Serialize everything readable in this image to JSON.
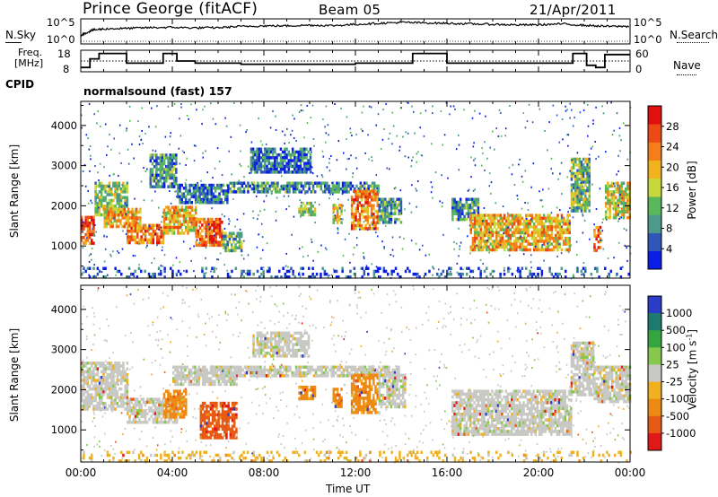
{
  "header": {
    "station": "Prince George (fitACF)",
    "beam": "Beam 05",
    "date": "21/Apr/2011"
  },
  "nsky_panel": {
    "left_label": "N.Sky",
    "right_label": "N.Search",
    "left_ticks": [
      "10^5",
      "10^0"
    ],
    "right_ticks": [
      "10^5",
      "10^0"
    ]
  },
  "freq_panel": {
    "left_label_1": "Freq.",
    "left_label_2": "[MHz]",
    "right_label": "Nave",
    "left_ticks": [
      "18",
      "8"
    ],
    "right_ticks": [
      "60",
      "0"
    ]
  },
  "cpid": {
    "label": "CPID",
    "program": "normalsound (fast) 157"
  },
  "colors": {
    "power_scale": [
      "#0a1ee6",
      "#2e57b8",
      "#4c9a8a",
      "#58b85a",
      "#c8d83c",
      "#f0b21e",
      "#f57e18",
      "#ec4a14",
      "#e01010"
    ],
    "velocity_scale": [
      "#2a3cc8",
      "#1e7a6e",
      "#34a640",
      "#86c84c",
      "#c8c8c4",
      "#f0b020",
      "#ee8a14",
      "#e85a14",
      "#e01818"
    ]
  },
  "chart_data": [
    {
      "type": "heatmap",
      "name": "power",
      "xlabel": "",
      "ylabel": "Slant Range [km]",
      "xlim": [
        0,
        24
      ],
      "ylim": [
        200,
        4600
      ],
      "y_ticks": [
        "1000",
        "2000",
        "3000",
        "4000"
      ],
      "y_tick_values": [
        1000,
        2000,
        3000,
        4000
      ],
      "colorbar": {
        "label": "Power [dB]",
        "ticks": [
          "4",
          "8",
          "12",
          "16",
          "20",
          "24",
          "28"
        ],
        "tick_values": [
          4,
          8,
          12,
          16,
          20,
          24,
          28
        ],
        "range": [
          0,
          32
        ]
      },
      "regions": [
        {
          "t0": 0.0,
          "t1": 0.6,
          "r0": 1050,
          "r1": 1750,
          "level": 27
        },
        {
          "t0": 0.6,
          "t1": 2.0,
          "r0": 1800,
          "r1": 2600,
          "level": 14
        },
        {
          "t0": 1.0,
          "t1": 2.6,
          "r0": 1500,
          "r1": 1950,
          "level": 20
        },
        {
          "t0": 2.0,
          "t1": 3.6,
          "r0": 1100,
          "r1": 1550,
          "level": 24
        },
        {
          "t0": 3.6,
          "t1": 5.0,
          "r0": 1300,
          "r1": 2000,
          "level": 20
        },
        {
          "t0": 3.0,
          "t1": 4.2,
          "r0": 2500,
          "r1": 3300,
          "level": 9
        },
        {
          "t0": 4.2,
          "t1": 6.4,
          "r0": 2050,
          "r1": 2550,
          "level": 7
        },
        {
          "t0": 5.0,
          "t1": 6.2,
          "r0": 1000,
          "r1": 1700,
          "level": 25
        },
        {
          "t0": 6.2,
          "t1": 7.0,
          "r0": 850,
          "r1": 1350,
          "level": 11
        },
        {
          "t0": 6.4,
          "t1": 13.0,
          "r0": 2350,
          "r1": 2600,
          "level": 8
        },
        {
          "t0": 7.4,
          "t1": 10.0,
          "r0": 2850,
          "r1": 3450,
          "level": 6
        },
        {
          "t0": 9.5,
          "t1": 10.2,
          "r0": 1750,
          "r1": 2100,
          "level": 14
        },
        {
          "t0": 11.0,
          "t1": 11.4,
          "r0": 1550,
          "r1": 2050,
          "level": 18
        },
        {
          "t0": 11.8,
          "t1": 13.0,
          "r0": 1450,
          "r1": 2400,
          "level": 23
        },
        {
          "t0": 13.0,
          "t1": 14.0,
          "r0": 1600,
          "r1": 2200,
          "level": 10
        },
        {
          "t0": 16.2,
          "t1": 17.4,
          "r0": 1650,
          "r1": 2200,
          "level": 9
        },
        {
          "t0": 17.0,
          "t1": 21.4,
          "r0": 900,
          "r1": 1800,
          "level": 20
        },
        {
          "t0": 21.4,
          "t1": 22.2,
          "r0": 1900,
          "r1": 3200,
          "level": 12
        },
        {
          "t0": 22.4,
          "t1": 22.7,
          "r0": 900,
          "r1": 1500,
          "level": 24
        },
        {
          "t0": 22.9,
          "t1": 24.0,
          "r0": 1700,
          "r1": 2600,
          "level": 17
        },
        {
          "t0": 0.0,
          "t1": 24.0,
          "r0": 230,
          "r1": 480,
          "level": 4
        }
      ]
    },
    {
      "type": "heatmap",
      "name": "velocity",
      "xlabel": "Time UT",
      "ylabel": "Slant Range [km]",
      "xlim": [
        0,
        24
      ],
      "ylim": [
        200,
        4600
      ],
      "x_ticks": [
        "00:00",
        "04:00",
        "08:00",
        "12:00",
        "16:00",
        "20:00",
        "00:00"
      ],
      "x_tick_values": [
        0,
        4,
        8,
        12,
        16,
        20,
        24
      ],
      "y_ticks": [
        "1000",
        "2000",
        "3000",
        "4000"
      ],
      "y_tick_values": [
        1000,
        2000,
        3000,
        4000
      ],
      "colorbar": {
        "label": "Velocity [m s",
        "label_exponent": "-1",
        "label_close": "]",
        "ticks": [
          "1000",
          "500",
          "100",
          "25",
          "-25",
          "-100",
          "-500",
          "-1000"
        ]
      },
      "regions": [
        {
          "t0": 0.0,
          "t1": 2.0,
          "r0": 1500,
          "r1": 2700,
          "class": 4
        },
        {
          "t0": 2.0,
          "t1": 4.2,
          "r0": 1200,
          "r1": 1800,
          "class": 4
        },
        {
          "t0": 3.6,
          "t1": 4.6,
          "r0": 1300,
          "r1": 2000,
          "class": 6
        },
        {
          "t0": 4.0,
          "t1": 6.8,
          "r0": 2100,
          "r1": 2600,
          "class": 4
        },
        {
          "t0": 5.2,
          "t1": 6.8,
          "r0": 800,
          "r1": 1700,
          "class": 7
        },
        {
          "t0": 6.0,
          "t1": 14.0,
          "r0": 2350,
          "r1": 2600,
          "class": 4
        },
        {
          "t0": 7.5,
          "t1": 10.0,
          "r0": 2850,
          "r1": 3450,
          "class": 4
        },
        {
          "t0": 9.5,
          "t1": 10.2,
          "r0": 1750,
          "r1": 2100,
          "class": 6
        },
        {
          "t0": 11.0,
          "t1": 11.4,
          "r0": 1550,
          "r1": 2050,
          "class": 6
        },
        {
          "t0": 11.8,
          "t1": 13.0,
          "r0": 1450,
          "r1": 2400,
          "class": 6
        },
        {
          "t0": 13.0,
          "t1": 14.2,
          "r0": 1600,
          "r1": 2400,
          "class": 4
        },
        {
          "t0": 16.2,
          "t1": 21.4,
          "r0": 900,
          "r1": 2000,
          "class": 4
        },
        {
          "t0": 21.4,
          "t1": 22.4,
          "r0": 1900,
          "r1": 3200,
          "class": 4
        },
        {
          "t0": 22.4,
          "t1": 24.0,
          "r0": 1700,
          "r1": 2600,
          "class": 4
        },
        {
          "t0": 0.0,
          "t1": 24.0,
          "r0": 230,
          "r1": 480,
          "class": 5
        }
      ]
    },
    {
      "type": "line",
      "name": "n-sky",
      "xlim": [
        0,
        24
      ],
      "series": [
        {
          "x": [
            0,
            0.5,
            1,
            2,
            3,
            4,
            5,
            6,
            7,
            8,
            9,
            10,
            11,
            12,
            13,
            14,
            15,
            16,
            17,
            18,
            19,
            20,
            21,
            22,
            23,
            24
          ],
          "y": [
            0.35,
            0.55,
            0.6,
            0.62,
            0.65,
            0.66,
            0.64,
            0.65,
            0.7,
            0.72,
            0.72,
            0.75,
            0.73,
            0.78,
            0.82,
            0.86,
            0.84,
            0.82,
            0.8,
            0.78,
            0.76,
            0.76,
            0.8,
            0.74,
            0.7,
            0.7
          ]
        }
      ]
    },
    {
      "type": "line",
      "name": "frequency",
      "xlim": [
        0,
        24
      ],
      "ylim": [
        8,
        18
      ],
      "series": [
        {
          "x": [
            0,
            0.4,
            0.4,
            0.8,
            0.8,
            2.0,
            2.0,
            3.6,
            3.6,
            4.2,
            4.2,
            5.0,
            5.0,
            7.0,
            7.0,
            12.0,
            12.0,
            14.5,
            14.5,
            16.0,
            16.0,
            21.5,
            21.5,
            22.1,
            22.1,
            22.5,
            22.5,
            22.9,
            22.9,
            24.0
          ],
          "y": [
            10,
            10,
            14,
            14,
            16.5,
            16.5,
            12,
            12,
            16.5,
            16.5,
            13,
            13,
            12,
            12,
            11.5,
            11.5,
            12,
            12,
            16.5,
            16.5,
            12,
            12,
            16.5,
            16.5,
            11,
            11,
            10,
            10,
            16,
            16
          ]
        }
      ]
    }
  ]
}
